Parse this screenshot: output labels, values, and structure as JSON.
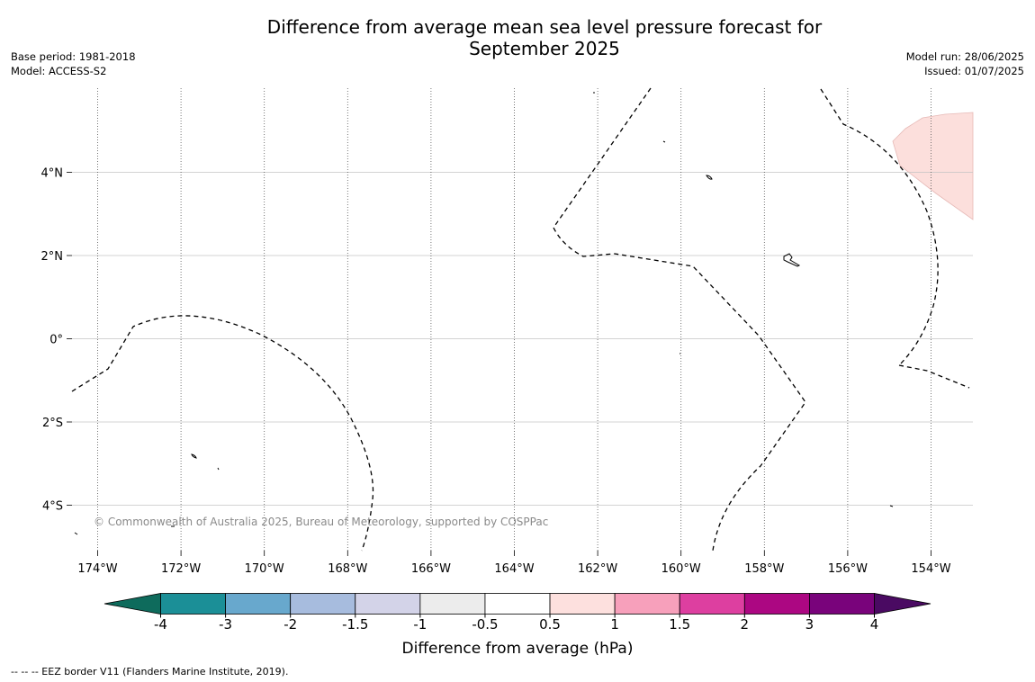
{
  "title": "Difference from average mean sea level pressure forecast for September 2025",
  "title_line1": "Difference from average mean sea level pressure forecast for",
  "title_line2": "September 2025",
  "meta_left": {
    "base_period": "Base period: 1981-2018",
    "model": "Model: ACCESS-S2"
  },
  "meta_right": {
    "model_run": "Model run: 28/06/2025",
    "issued": "Issued: 01/07/2025"
  },
  "copyright": "© Commonwealth of Australia 2025, Bureau of Meteorology, supported by COSPPac",
  "footer": "--  --  -- EEZ border V11 (Flanders Marine Institute, 2019).",
  "map": {
    "lat_labels": [
      "4°N",
      "2°N",
      "0°",
      "2°S",
      "4°S"
    ],
    "lat_values": [
      4,
      2,
      0,
      -2,
      -4
    ],
    "lon_labels": [
      "174°W",
      "172°W",
      "170°W",
      "168°W",
      "166°W",
      "164°W",
      "162°W",
      "160°W",
      "158°W",
      "156°W",
      "154°W"
    ],
    "lon_values": [
      -174,
      -172,
      -170,
      -168,
      -166,
      -164,
      -162,
      -160,
      -158,
      -156,
      -154
    ],
    "anomaly_region_color": "#fcdfdc"
  },
  "colorbar": {
    "title": "Difference from average (hPa)",
    "tick_labels": [
      "-4",
      "-3",
      "-2",
      "-1.5",
      "-1",
      "-0.5",
      "0.5",
      "1",
      "1.5",
      "2",
      "3",
      "4"
    ],
    "colors": [
      "#1b8f97",
      "#68a8cd",
      "#a7bcde",
      "#d3d3e8",
      "#ececec",
      "#ffffff",
      "#fde0de",
      "#f7a0bb",
      "#dd3fa0",
      "#ac0782",
      "#79037b"
    ],
    "low_extend_color": "#0e6b5c",
    "high_extend_color": "#4a0a62"
  }
}
